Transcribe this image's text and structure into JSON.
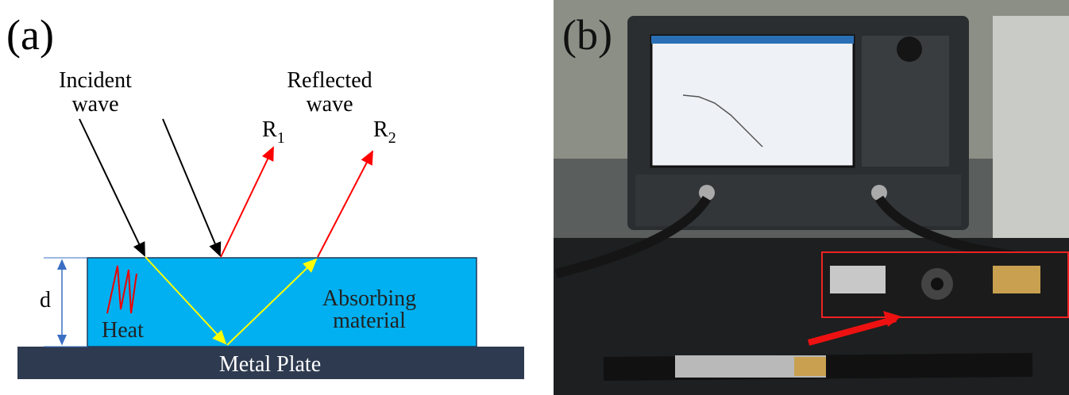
{
  "panel_a": {
    "label": "(a)",
    "incident": [
      "Incident",
      "wave"
    ],
    "reflected": [
      "Reflected",
      "wave"
    ],
    "r1": {
      "base": "R",
      "sub": "1"
    },
    "r2": {
      "base": "R",
      "sub": "2"
    },
    "thickness": "d",
    "heat": "Heat",
    "absorber": [
      "Absorbing",
      "material"
    ],
    "plate": "Metal Plate"
  },
  "panel_b": {
    "label": "(b)"
  }
}
